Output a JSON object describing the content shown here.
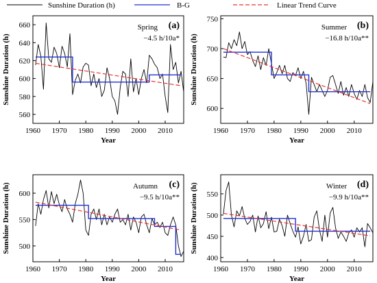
{
  "legend": {
    "items": [
      {
        "label": "Sunshine Duration (h)",
        "color": "#000000",
        "style": "solid"
      },
      {
        "label": "B-G",
        "color": "#1f2fd6",
        "style": "solid"
      },
      {
        "label": "Linear Trend Curve",
        "color": "#e8342a",
        "style": "dashed"
      }
    ]
  },
  "chart_data": [
    {
      "type": "line",
      "panel": "(a)",
      "season": "Spring",
      "trend_text": "−4.5 h/10a*",
      "xlabel": "Year",
      "ylabel": "Sunshine Duration (h)",
      "xlim": [
        1960,
        2017
      ],
      "ylim": [
        550,
        670
      ],
      "xticks": [
        1960,
        1970,
        1980,
        1990,
        2000,
        2010
      ],
      "yticks": [
        560,
        580,
        600,
        620,
        640,
        660
      ],
      "series": [
        {
          "name": "Sunshine Duration (h)",
          "x_start": 1961,
          "values": [
            615,
            638,
            625,
            588,
            662,
            622,
            618,
            635,
            628,
            612,
            636,
            628,
            613,
            650,
            582,
            598,
            605,
            595,
            613,
            617,
            615,
            592,
            605,
            590,
            600,
            580,
            587,
            612,
            600,
            580,
            575,
            560,
            590,
            608,
            605,
            580,
            622,
            585,
            600,
            582,
            600,
            610,
            595,
            626,
            622,
            616,
            612,
            600,
            605,
            580,
            562,
            638,
            610,
            618,
            595,
            608,
            585
          ]
        },
        {
          "name": "B-G",
          "segments": [
            [
              1961,
              1975,
              624
            ],
            [
              1975,
              2004,
              596
            ],
            [
              2004,
              2016,
              604
            ]
          ]
        },
        {
          "name": "Linear Trend Curve",
          "line": [
            [
              1961,
              617
            ],
            [
              2016,
              592
            ]
          ]
        }
      ]
    },
    {
      "type": "line",
      "panel": "(b)",
      "season": "Summer",
      "trend_text": "−16.8 h/10a**",
      "xlabel": "Year",
      "ylabel": "Sunshine Duration (h)",
      "xlim": [
        1960,
        2017
      ],
      "ylim": [
        575,
        755
      ],
      "xticks": [
        1960,
        1970,
        1980,
        1990,
        2000,
        2010
      ],
      "yticks": [
        600,
        650,
        700,
        750
      ],
      "series": [
        {
          "name": "Sunshine Duration (h)",
          "x_start": 1961,
          "values": [
            686,
            685,
            710,
            700,
            715,
            705,
            728,
            700,
            712,
            690,
            695,
            680,
            670,
            688,
            665,
            685,
            672,
            700,
            675,
            650,
            660,
            672,
            658,
            672,
            650,
            645,
            660,
            655,
            668,
            650,
            662,
            642,
            590,
            652,
            640,
            628,
            640,
            630,
            620,
            630,
            652,
            655,
            640,
            625,
            645,
            622,
            635,
            620,
            640,
            625,
            615,
            630,
            620,
            640,
            618,
            610,
            645
          ]
        },
        {
          "name": "B-G",
          "segments": [
            [
              1961,
              1979,
              694
            ],
            [
              1979,
              1993,
              656
            ],
            [
              1993,
              2016,
              628
            ]
          ]
        },
        {
          "name": "Linear Trend Curve",
          "line": [
            [
              1961,
              700
            ],
            [
              2016,
              608
            ]
          ]
        }
      ]
    },
    {
      "type": "line",
      "panel": "(c)",
      "season": "Autumn",
      "trend_text": "−9.5 h/10a**",
      "xlabel": "Year",
      "ylabel": "Sunshine Duration (h)",
      "xlim": [
        1960,
        2017
      ],
      "ylim": [
        470,
        635
      ],
      "xticks": [
        1960,
        1970,
        1980,
        1990,
        2000,
        2010
      ],
      "yticks": [
        500,
        550,
        600
      ],
      "series": [
        {
          "name": "Sunshine Duration (h)",
          "x_start": 1961,
          "values": [
            538,
            580,
            560,
            588,
            605,
            572,
            603,
            580,
            598,
            578,
            565,
            588,
            570,
            560,
            545,
            580,
            598,
            625,
            600,
            530,
            520,
            560,
            570,
            550,
            570,
            540,
            560,
            540,
            555,
            545,
            560,
            570,
            545,
            550,
            540,
            560,
            530,
            555,
            545,
            525,
            555,
            560,
            540,
            525,
            552,
            540,
            545,
            535,
            545,
            525,
            520,
            540,
            555,
            540,
            500,
            480,
            490
          ]
        },
        {
          "name": "B-G",
          "segments": [
            [
              1961,
              1981,
              577
            ],
            [
              1981,
              2006,
              552
            ],
            [
              2006,
              2014,
              537
            ],
            [
              2014,
              2016,
              484
            ]
          ]
        },
        {
          "name": "Linear Trend Curve",
          "line": [
            [
              1961,
              583
            ],
            [
              2016,
              530
            ]
          ]
        }
      ]
    },
    {
      "type": "line",
      "panel": "(d)",
      "season": "Winter",
      "trend_text": "−9.9 h/10a**",
      "xlabel": "Year",
      "ylabel": "Sunshine Duration (h)",
      "xlim": [
        1960,
        2017
      ],
      "ylim": [
        390,
        595
      ],
      "xticks": [
        1960,
        1970,
        1980,
        1990,
        2000,
        2010
      ],
      "yticks": [
        400,
        450,
        500,
        550
      ],
      "series": [
        {
          "name": "Sunshine Duration (h)",
          "x_start": 1961,
          "values": [
            502,
            558,
            578,
            500,
            472,
            510,
            498,
            520,
            492,
            478,
            485,
            500,
            460,
            498,
            470,
            480,
            508,
            468,
            495,
            460,
            462,
            490,
            475,
            450,
            500,
            480,
            462,
            448,
            472,
            432,
            450,
            478,
            438,
            442,
            495,
            510,
            465,
            438,
            500,
            448,
            505,
            518,
            470,
            445,
            460,
            450,
            438,
            458,
            465,
            448,
            470,
            460,
            470,
            425,
            480,
            470,
            458
          ]
        },
        {
          "name": "B-G",
          "segments": [
            [
              1961,
              1988,
              492
            ],
            [
              1988,
              2016,
              462
            ]
          ]
        },
        {
          "name": "Linear Trend Curve",
          "line": [
            [
              1961,
              504
            ],
            [
              2016,
              451
            ]
          ]
        }
      ]
    }
  ]
}
